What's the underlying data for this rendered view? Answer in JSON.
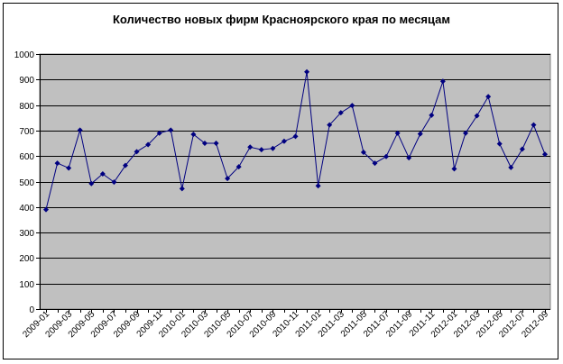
{
  "chart_data": {
    "type": "line",
    "title": "Количество новых фирм Красноярского края по месяцам",
    "xlabel": "",
    "ylabel": "",
    "ylim": [
      0,
      1000
    ],
    "yticks": [
      0,
      100,
      200,
      300,
      400,
      500,
      600,
      700,
      800,
      900,
      1000
    ],
    "grid": true,
    "legend": "none",
    "colors": {
      "plot_bg": "#C0C0C0",
      "line": "#000080",
      "marker": "#000080",
      "grid": "#000000"
    },
    "categories": [
      "2009-01",
      "2009-02",
      "2009-03",
      "2009-04",
      "2009-05",
      "2009-06",
      "2009-07",
      "2009-08",
      "2009-09",
      "2009-10",
      "2009-11",
      "2009-12",
      "2010-01",
      "2010-02",
      "2010-03",
      "2010-04",
      "2010-05",
      "2010-06",
      "2010-07",
      "2010-08",
      "2010-09",
      "2010-10",
      "2010-11",
      "2010-12",
      "2011-01",
      "2011-02",
      "2011-03",
      "2011-04",
      "2011-05",
      "2011-06",
      "2011-07",
      "2011-08",
      "2011-09",
      "2011-10",
      "2011-11",
      "2011-12",
      "2012-01",
      "2012-02",
      "2012-03",
      "2012-04",
      "2012-05",
      "2012-06",
      "2012-07",
      "2012-08",
      "2012-09"
    ],
    "tick_labels": [
      "2009-01",
      "2009-03",
      "2009-05",
      "2009-07",
      "2009-09",
      "2009-11",
      "2010-01",
      "2010-03",
      "2010-05",
      "2010-07",
      "2010-09",
      "2010-11",
      "2011-01",
      "2011-03",
      "2011-05",
      "2011-07",
      "2011-09",
      "2011-11",
      "2012-01",
      "2012-03",
      "2012-05",
      "2012-07",
      "2012-09"
    ],
    "series": [
      {
        "values": [
          390,
          572,
          553,
          702,
          492,
          530,
          498,
          563,
          617,
          645,
          690,
          702,
          472,
          685,
          650,
          650,
          512,
          558,
          635,
          625,
          630,
          658,
          677,
          930,
          483,
          722,
          770,
          798,
          615,
          572,
          598,
          690,
          593,
          687,
          760,
          893,
          550,
          690,
          758,
          833,
          648,
          555,
          627,
          722,
          607
        ]
      }
    ]
  }
}
